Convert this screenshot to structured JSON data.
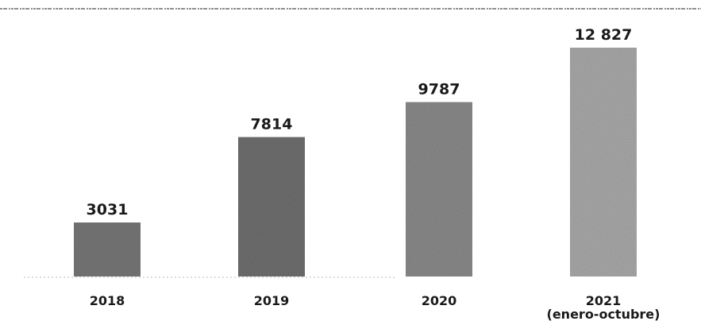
{
  "chart_data": {
    "type": "bar",
    "title": "",
    "xlabel": "",
    "ylabel": "",
    "categories": [
      "2018",
      "2019",
      "2020",
      "2021"
    ],
    "category_sublabels": [
      "",
      "",
      "",
      "(enero-octubre)"
    ],
    "values": [
      3031,
      7814,
      9787,
      12827
    ],
    "value_labels": [
      "3031",
      "7814",
      "9787",
      "12 827"
    ],
    "ylim": [
      0,
      12827
    ],
    "grid": false,
    "legend": "none",
    "bar_colors": [
      "#777777",
      "#6f6f6f",
      "#8a8a8a",
      "#a9a9a9"
    ]
  }
}
